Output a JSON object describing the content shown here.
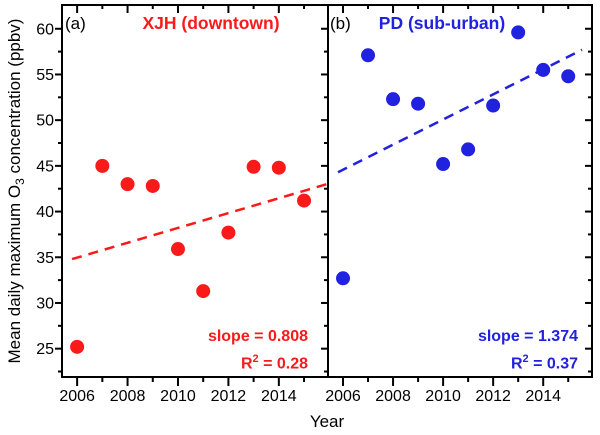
{
  "figure": {
    "x_axis_title": "Year",
    "y_axis_title": {
      "pre": "Mean daily maximum O",
      "sub": "3",
      "post": " concentration (ppbv)"
    }
  },
  "chart_data": [
    {
      "id": "xjh",
      "type": "scatter",
      "panel_label": "(a)",
      "title": "XJH (downtown)",
      "color": "#fb1a1a",
      "x": [
        2006,
        2007,
        2008,
        2009,
        2010,
        2011,
        2012,
        2013,
        2014,
        2015
      ],
      "values": [
        25.2,
        45.0,
        43.0,
        42.8,
        35.9,
        31.3,
        37.7,
        44.9,
        44.8,
        41.2
      ],
      "trend": {
        "style": "dashed",
        "slope": 0.808,
        "r2": 0.28,
        "x1": 2005.8,
        "y1": 34.8,
        "x2": 2015.9,
        "y2": 43.0
      },
      "annotation": {
        "slope": "slope = 0.808",
        "r_base": "R",
        "r_sup": "2",
        "r_rest": " = 0.28"
      },
      "xlabel": "Year",
      "ylabel": "Mean daily maximum O3 concentration (ppbv)",
      "xticks": [
        2006,
        2008,
        2010,
        2012,
        2014
      ],
      "x_minor_ticks": [
        2007,
        2009,
        2011,
        2013,
        2015
      ],
      "yticks": [
        25,
        30,
        35,
        40,
        45,
        50,
        55,
        60
      ],
      "y_minor_ticks": [
        22.5,
        27.5,
        32.5,
        37.5,
        42.5,
        47.5,
        52.5,
        57.5
      ],
      "xlim": [
        2005.4,
        2015.95
      ],
      "ylim": [
        21.9,
        62.6
      ],
      "grid": false,
      "legend": false
    },
    {
      "id": "pd",
      "type": "scatter",
      "panel_label": "(b)",
      "title": "PD (sub-urban)",
      "color": "#2121e0",
      "x": [
        2006,
        2007,
        2008,
        2009,
        2010,
        2011,
        2012,
        2013,
        2014,
        2015
      ],
      "values": [
        32.7,
        57.1,
        52.3,
        51.8,
        45.2,
        46.8,
        51.6,
        59.6,
        55.5,
        54.8
      ],
      "trend": {
        "style": "dashed",
        "slope": 1.374,
        "r2": 0.37,
        "x1": 2005.8,
        "y1": 44.3,
        "x2": 2015.55,
        "y2": 57.7
      },
      "annotation": {
        "slope": "slope = 1.374",
        "r_base": "R",
        "r_sup": "2",
        "r_rest": " = 0.37"
      },
      "xlabel": "Year",
      "ylabel": "Mean daily maximum O3 concentration (ppbv)",
      "xticks": [
        2006,
        2008,
        2010,
        2012,
        2014
      ],
      "x_minor_ticks": [
        2007,
        2009,
        2011,
        2013,
        2015
      ],
      "yticks": [
        25,
        30,
        35,
        40,
        45,
        50,
        55,
        60
      ],
      "y_minor_ticks": [
        22.5,
        27.5,
        32.5,
        37.5,
        42.5,
        47.5,
        52.5,
        57.5
      ],
      "xlim": [
        2005.4,
        2015.95
      ],
      "ylim": [
        21.9,
        62.6
      ],
      "grid": false,
      "legend": false
    }
  ]
}
